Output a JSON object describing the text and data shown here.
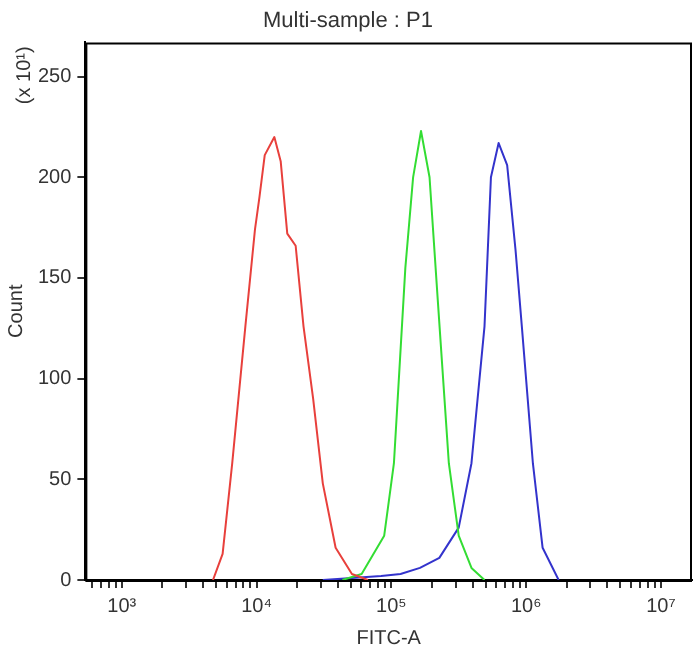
{
  "chart_data": {
    "type": "line",
    "title": "Multi-sample : P1",
    "xlabel": "FITC-A",
    "ylabel": "Count",
    "annotations": [
      "(x 10¹)"
    ],
    "log": "x",
    "grid": false,
    "legend": false,
    "marker": "none",
    "line_style": "solid",
    "xlim": [
      537,
      17000000
    ],
    "ylim": [
      0,
      267
    ],
    "xticks": [
      {
        "value": 600,
        "label": null
      },
      {
        "value": 700,
        "label": null
      },
      {
        "value": 800,
        "label": null
      },
      {
        "value": 900,
        "label": null
      },
      {
        "value": 1000,
        "label": "10³"
      },
      {
        "value": 2000,
        "label": null
      },
      {
        "value": 3000,
        "label": null
      },
      {
        "value": 4000,
        "label": null
      },
      {
        "value": 5000,
        "label": null
      },
      {
        "value": 6000,
        "label": null
      },
      {
        "value": 7000,
        "label": null
      },
      {
        "value": 8000,
        "label": null
      },
      {
        "value": 9000,
        "label": null
      },
      {
        "value": 10000,
        "label": "10⁴"
      },
      {
        "value": 20000,
        "label": null
      },
      {
        "value": 30000,
        "label": null
      },
      {
        "value": 40000,
        "label": null
      },
      {
        "value": 50000,
        "label": null
      },
      {
        "value": 60000,
        "label": null
      },
      {
        "value": 70000,
        "label": null
      },
      {
        "value": 80000,
        "label": null
      },
      {
        "value": 90000,
        "label": null
      },
      {
        "value": 100000,
        "label": "10⁵"
      },
      {
        "value": 200000,
        "label": null
      },
      {
        "value": 300000,
        "label": null
      },
      {
        "value": 400000,
        "label": null
      },
      {
        "value": 500000,
        "label": null
      },
      {
        "value": 600000,
        "label": null
      },
      {
        "value": 700000,
        "label": null
      },
      {
        "value": 800000,
        "label": null
      },
      {
        "value": 900000,
        "label": null
      },
      {
        "value": 1000000,
        "label": "10⁶"
      },
      {
        "value": 2000000,
        "label": null
      },
      {
        "value": 3000000,
        "label": null
      },
      {
        "value": 4000000,
        "label": null
      },
      {
        "value": 5000000,
        "label": null
      },
      {
        "value": 6000000,
        "label": null
      },
      {
        "value": 7000000,
        "label": null
      },
      {
        "value": 8000000,
        "label": null
      },
      {
        "value": 9000000,
        "label": null
      },
      {
        "value": 10000000,
        "label": "10⁷"
      }
    ],
    "yticks": [
      0,
      50,
      100,
      150,
      200,
      250
    ],
    "series": [
      {
        "color": "#e8403c",
        "x": [
          4750,
          5600,
          6600,
          8260,
          9730,
          10500,
          11500,
          13550,
          15100,
          16900,
          19500,
          22300,
          26300,
          31000,
          38600,
          51000,
          67100
        ],
        "values": [
          0,
          13,
          58,
          126,
          174,
          190,
          211,
          220,
          208,
          172,
          166,
          126,
          90,
          48,
          16,
          3,
          0
        ]
      },
      {
        "color": "#33dd33",
        "x": [
          43300,
          60200,
          88500,
          104500,
          123000,
          127000,
          145000,
          166000,
          192000,
          221000,
          267000,
          316000,
          393000,
          491000
        ],
        "values": [
          0,
          3,
          22,
          58,
          139,
          155,
          200,
          223,
          200,
          139,
          58,
          22,
          6,
          0
        ]
      },
      {
        "color": "#3333cc",
        "x": [
          31000,
          84000,
          117000,
          163000,
          227000,
          316000,
          393000,
          491000,
          548000,
          625000,
          723000,
          834000,
          929000,
          1122000,
          1325000,
          1742000
        ],
        "values": [
          0,
          2,
          3,
          6,
          11,
          26,
          58,
          126,
          200,
          217,
          206,
          164,
          126,
          58,
          16,
          0
        ]
      }
    ]
  }
}
